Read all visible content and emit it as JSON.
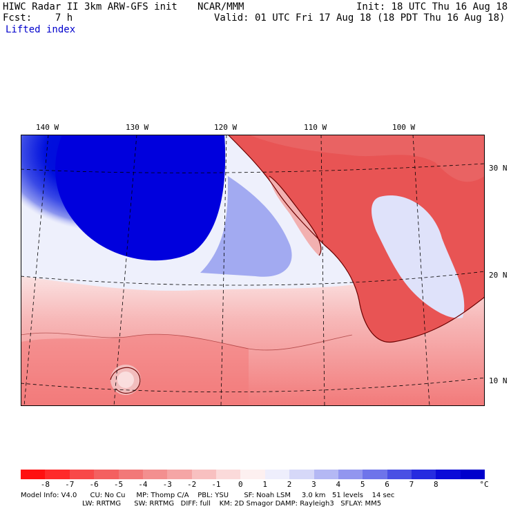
{
  "header": {
    "model_title": "HIWC Radar II 3km ARW-GFS init",
    "org": "NCAR/MMM",
    "init": "Init: 18 UTC Thu 16 Aug 18",
    "fcst": "Fcst:    7 h",
    "valid": "Valid: 01 UTC Fri 17 Aug 18 (18 PDT Thu 16 Aug 18)",
    "field": "Lifted index"
  },
  "map": {
    "lon_labels": [
      "140 W",
      "130 W",
      "120 W",
      "110 W",
      "100 W"
    ],
    "lat_labels": [
      "30 N",
      "20 N",
      "10 N"
    ],
    "colors": {
      "deep_blue": "#0000dd",
      "ocean_mid": "#6f7ff0",
      "neutral": "#fbe7e7",
      "warm": "#f39c9c",
      "land_red": "#e84848",
      "coast": "#6b0000",
      "grid": "#000000"
    }
  },
  "colorbar": {
    "ticks": [
      "-8",
      "-7",
      "-6",
      "-5",
      "-4",
      "-3",
      "-2",
      "-1",
      "0",
      "1",
      "2",
      "3",
      "4",
      "5",
      "6",
      "7",
      "8"
    ],
    "unit": "°C",
    "colors": [
      "#ff1010",
      "#ff2a2a",
      "#f84848",
      "#f46060",
      "#f27878",
      "#f38f8f",
      "#f5a5a5",
      "#f8c0c0",
      "#fbdada",
      "#fdf0f0",
      "#eeeefc",
      "#d6d8f8",
      "#b4b8f4",
      "#9296ef",
      "#6e74ea",
      "#4a50e4",
      "#262ce0",
      "#0a0ad8",
      "#0000cc"
    ]
  },
  "info": {
    "line1": "Model Info: V4.0      CU: No Cu     MP: Thomp C/A    PBL: YSU       SF: Noah LSM     3.0 km   51 levels    14 sec",
    "line2": "                            LW: RRTMG      SW: RRTMG   DIFF: full    KM: 2D Smagor DAMP: Rayleigh3   SFLAY: MM5"
  }
}
